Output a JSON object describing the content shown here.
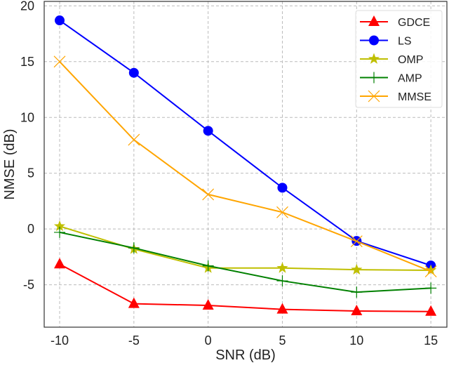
{
  "chart_data": {
    "type": "line",
    "title": "",
    "xlabel": "SNR (dB)",
    "ylabel": "NMSE (dB)",
    "x": [
      -10,
      -5,
      0,
      5,
      10,
      15
    ],
    "xticks": [
      -10,
      -5,
      0,
      5,
      10,
      15
    ],
    "yticks": [
      -5,
      0,
      5,
      10,
      15,
      20
    ],
    "xlim": [
      -11.04,
      16.08
    ],
    "ylim": [
      -8.8,
      20.4
    ],
    "grid": true,
    "legend_position": "top-right",
    "series": [
      {
        "name": "GDCE",
        "color": "#ff0000",
        "marker": "triangle",
        "values": [
          -3.15,
          -6.7,
          -6.85,
          -7.2,
          -7.35,
          -7.4
        ]
      },
      {
        "name": "LS",
        "color": "#0000ff",
        "marker": "circle",
        "values": [
          18.7,
          14.0,
          8.8,
          3.7,
          -1.07,
          -3.27
        ]
      },
      {
        "name": "OMP",
        "color": "#bfbf00",
        "marker": "star",
        "values": [
          0.25,
          -1.8,
          -3.5,
          -3.5,
          -3.65,
          -3.7
        ]
      },
      {
        "name": "AMP",
        "color": "#008000",
        "marker": "plus",
        "values": [
          -0.3,
          -1.7,
          -3.3,
          -4.65,
          -5.66,
          -5.3
        ]
      },
      {
        "name": "MMSE",
        "color": "#ffa500",
        "marker": "x",
        "values": [
          15.0,
          8.0,
          3.1,
          1.5,
          -1.1,
          -3.8
        ]
      }
    ]
  }
}
